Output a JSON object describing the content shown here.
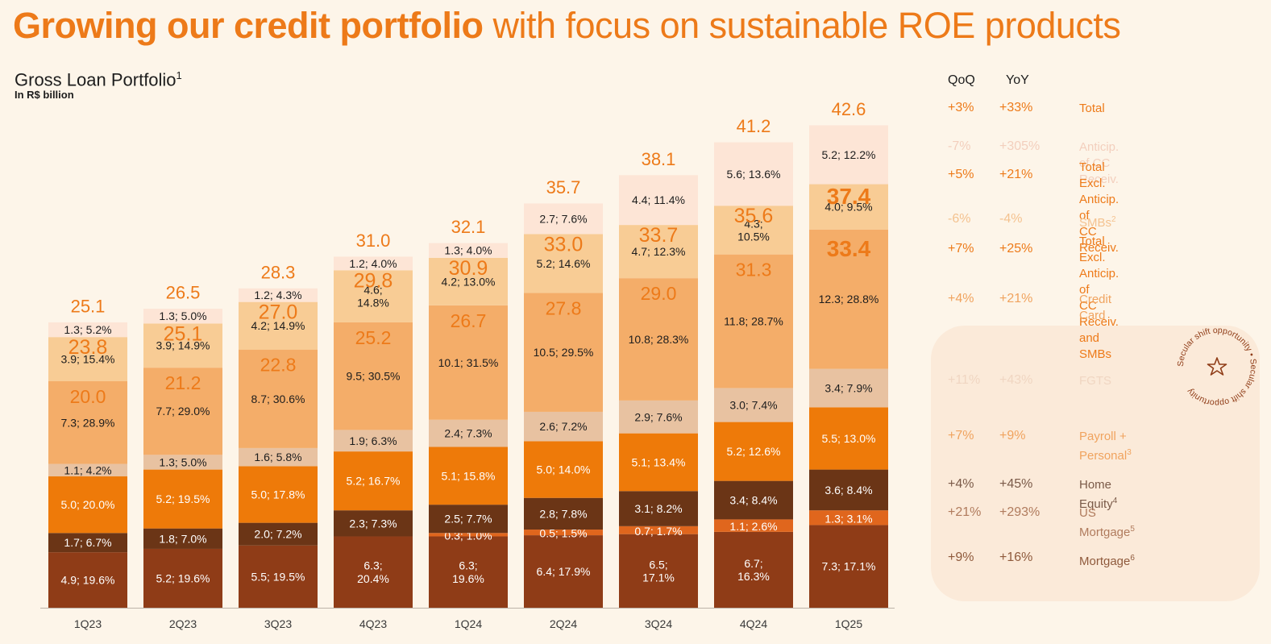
{
  "headline": {
    "bold": "Growing our credit portfolio",
    "light": "with focus on sustainable ROE products"
  },
  "chart_title": "Gross Loan Portfolio",
  "chart_title_sup": "1",
  "chart_unit": "In R$ billion",
  "table_headers": {
    "qoq": "QoQ",
    "yoy": "YoY"
  },
  "colors": {
    "mortgage": "#8f3c17",
    "us_mortgage": "#e0661d",
    "home_equity": "#6b3516",
    "payroll_personal": "#ee7a09",
    "fgts": "#e8c2a1",
    "credit_card": "#f4ad69",
    "smbs": "#f8cc95",
    "anticip": "#fde5d6",
    "accent": "#ed7a19"
  },
  "legend": [
    {
      "key": "total",
      "qoq": "+3%",
      "yoy": "+33%",
      "label": "Total",
      "sup": "",
      "color": "#ed7a19"
    },
    {
      "key": "anticip",
      "qoq": "-7%",
      "yoy": "+305%",
      "label": "Anticip. of CC Receiv.",
      "sup": "",
      "color": "#f3cfbd"
    },
    {
      "key": "total_excl_anticip",
      "qoq": "+5%",
      "yoy": "+21%",
      "label": "Total Excl. Anticip. of\nCC Receiv.",
      "sup": "",
      "color": "#ed7a19"
    },
    {
      "key": "smbs",
      "qoq": "-6%",
      "yoy": "-4%",
      "label": "SMBs",
      "sup": "2",
      "color": "#f4c28f"
    },
    {
      "key": "total_excl_anticip_smbs",
      "qoq": "+7%",
      "yoy": "+25%",
      "label": "Total Excl. Anticip. of\nCC Receiv. and SMBs",
      "sup": "",
      "color": "#ed7a19"
    },
    {
      "key": "credit_card",
      "qoq": "+4%",
      "yoy": "+21%",
      "label": "Credit Card",
      "sup": "",
      "color": "#f0a35e"
    },
    {
      "key": "fgts",
      "qoq": "+11%",
      "yoy": "+43%",
      "label": "FGTS",
      "sup": "",
      "color": "#f0d6c2"
    },
    {
      "key": "payroll_personal",
      "qoq": "+7%",
      "yoy": "+9%",
      "label": "Payroll + Personal",
      "sup": "3",
      "color": "#f0a35e"
    },
    {
      "key": "home_equity",
      "qoq": "+4%",
      "yoy": "+45%",
      "label": "Home Equity",
      "sup": "4",
      "color": "#7a5a48"
    },
    {
      "key": "us_mortgage",
      "qoq": "+21%",
      "yoy": "+293%",
      "label": "US Mortgage",
      "sup": "5",
      "color": "#b07b5d"
    },
    {
      "key": "mortgage",
      "qoq": "+9%",
      "yoy": "+16%",
      "label": "Mortgage",
      "sup": "6",
      "color": "#8f5a3c"
    }
  ],
  "seal_text": "Secular shift opportunity",
  "chart_data": {
    "type": "bar",
    "stacked": true,
    "categories": [
      "1Q23",
      "2Q23",
      "3Q23",
      "4Q23",
      "1Q24",
      "2Q24",
      "3Q24",
      "4Q24",
      "1Q25"
    ],
    "ylim": [
      0,
      45
    ],
    "series": [
      {
        "key": "mortgage",
        "values": [
          4.9,
          5.2,
          5.5,
          6.3,
          6.3,
          6.4,
          6.5,
          6.7,
          7.3
        ],
        "labels": [
          "4.9; 19.6%",
          "5.2; 19.6%",
          "5.5; 19.5%",
          "6.3;\n20.4%",
          "6.3;\n19.6%",
          "6.4; 17.9%",
          "6.5;\n17.1%",
          "6.7;\n16.3%",
          "7.3; 17.1%"
        ]
      },
      {
        "key": "us_mortgage",
        "values": [
          0,
          0,
          0,
          0,
          0.3,
          0.5,
          0.7,
          1.1,
          1.3
        ],
        "labels": [
          "",
          "",
          "",
          "",
          "0.3; 1.0%",
          "0.5; 1.5%",
          "0.7; 1.7%",
          "1.1; 2.6%",
          "1.3; 3.1%"
        ]
      },
      {
        "key": "home_equity",
        "values": [
          1.7,
          1.8,
          2.0,
          2.3,
          2.5,
          2.8,
          3.1,
          3.4,
          3.6
        ],
        "labels": [
          "1.7; 6.7%",
          "1.8; 7.0%",
          "2.0; 7.2%",
          "2.3; 7.3%",
          "2.5; 7.7%",
          "2.8; 7.8%",
          "3.1; 8.2%",
          "3.4; 8.4%",
          "3.6; 8.4%"
        ]
      },
      {
        "key": "payroll_personal",
        "values": [
          5.0,
          5.2,
          5.0,
          5.2,
          5.1,
          5.0,
          5.1,
          5.2,
          5.5
        ],
        "labels": [
          "5.0; 20.0%",
          "5.2; 19.5%",
          "5.0; 17.8%",
          "5.2; 16.7%",
          "5.1; 15.8%",
          "5.0; 14.0%",
          "5.1; 13.4%",
          "5.2; 12.6%",
          "5.5; 13.0%"
        ]
      },
      {
        "key": "fgts",
        "values": [
          1.1,
          1.3,
          1.6,
          1.9,
          2.4,
          2.6,
          2.9,
          3.0,
          3.4
        ],
        "labels": [
          "1.1; 4.2%",
          "1.3; 5.0%",
          "1.6; 5.8%",
          "1.9; 6.3%",
          "2.4; 7.3%",
          "2.6; 7.2%",
          "2.9; 7.6%",
          "3.0; 7.4%",
          "3.4; 7.9%"
        ]
      },
      {
        "key": "credit_card",
        "values": [
          7.3,
          7.7,
          8.7,
          9.5,
          10.1,
          10.5,
          10.8,
          11.8,
          12.3
        ],
        "labels": [
          "7.3; 28.9%",
          "7.7; 29.0%",
          "8.7; 30.6%",
          "9.5; 30.5%",
          "10.1; 31.5%",
          "10.5; 29.5%",
          "10.8; 28.3%",
          "11.8; 28.7%",
          "12.3; 28.8%"
        ]
      },
      {
        "key": "smbs",
        "values": [
          3.9,
          3.9,
          4.2,
          4.6,
          4.2,
          5.2,
          4.7,
          4.3,
          4.0
        ],
        "labels": [
          "3.9; 15.4%",
          "3.9; 14.9%",
          "4.2; 14.9%",
          "4.6;\n14.8%",
          "4.2; 13.0%",
          "5.2; 14.6%",
          "4.7; 12.3%",
          "4.3;\n10.5%",
          "4.0; 9.5%"
        ]
      },
      {
        "key": "anticip",
        "values": [
          1.3,
          1.3,
          1.2,
          1.2,
          1.3,
          2.7,
          4.4,
          5.6,
          5.2
        ],
        "labels": [
          "1.3; 5.2%",
          "1.3; 5.0%",
          "1.2; 4.3%",
          "1.2; 4.0%",
          "1.3; 4.0%",
          "2.7; 7.6%",
          "4.4; 11.4%",
          "5.6; 13.6%",
          "5.2; 12.2%"
        ]
      }
    ],
    "totals": [
      "25.1",
      "26.5",
      "28.3",
      "31.0",
      "32.1",
      "35.7",
      "38.1",
      "41.2",
      "42.6"
    ],
    "total_excl_anticip": [
      "23.8",
      "25.1",
      "27.0",
      "29.8",
      "30.9",
      "33.0",
      "33.7",
      "35.6",
      "37.4"
    ],
    "total_excl_anticip_smbs": [
      "20.0",
      "21.2",
      "22.8",
      "25.2",
      "26.7",
      "27.8",
      "29.0",
      "31.3",
      "33.4"
    ]
  }
}
